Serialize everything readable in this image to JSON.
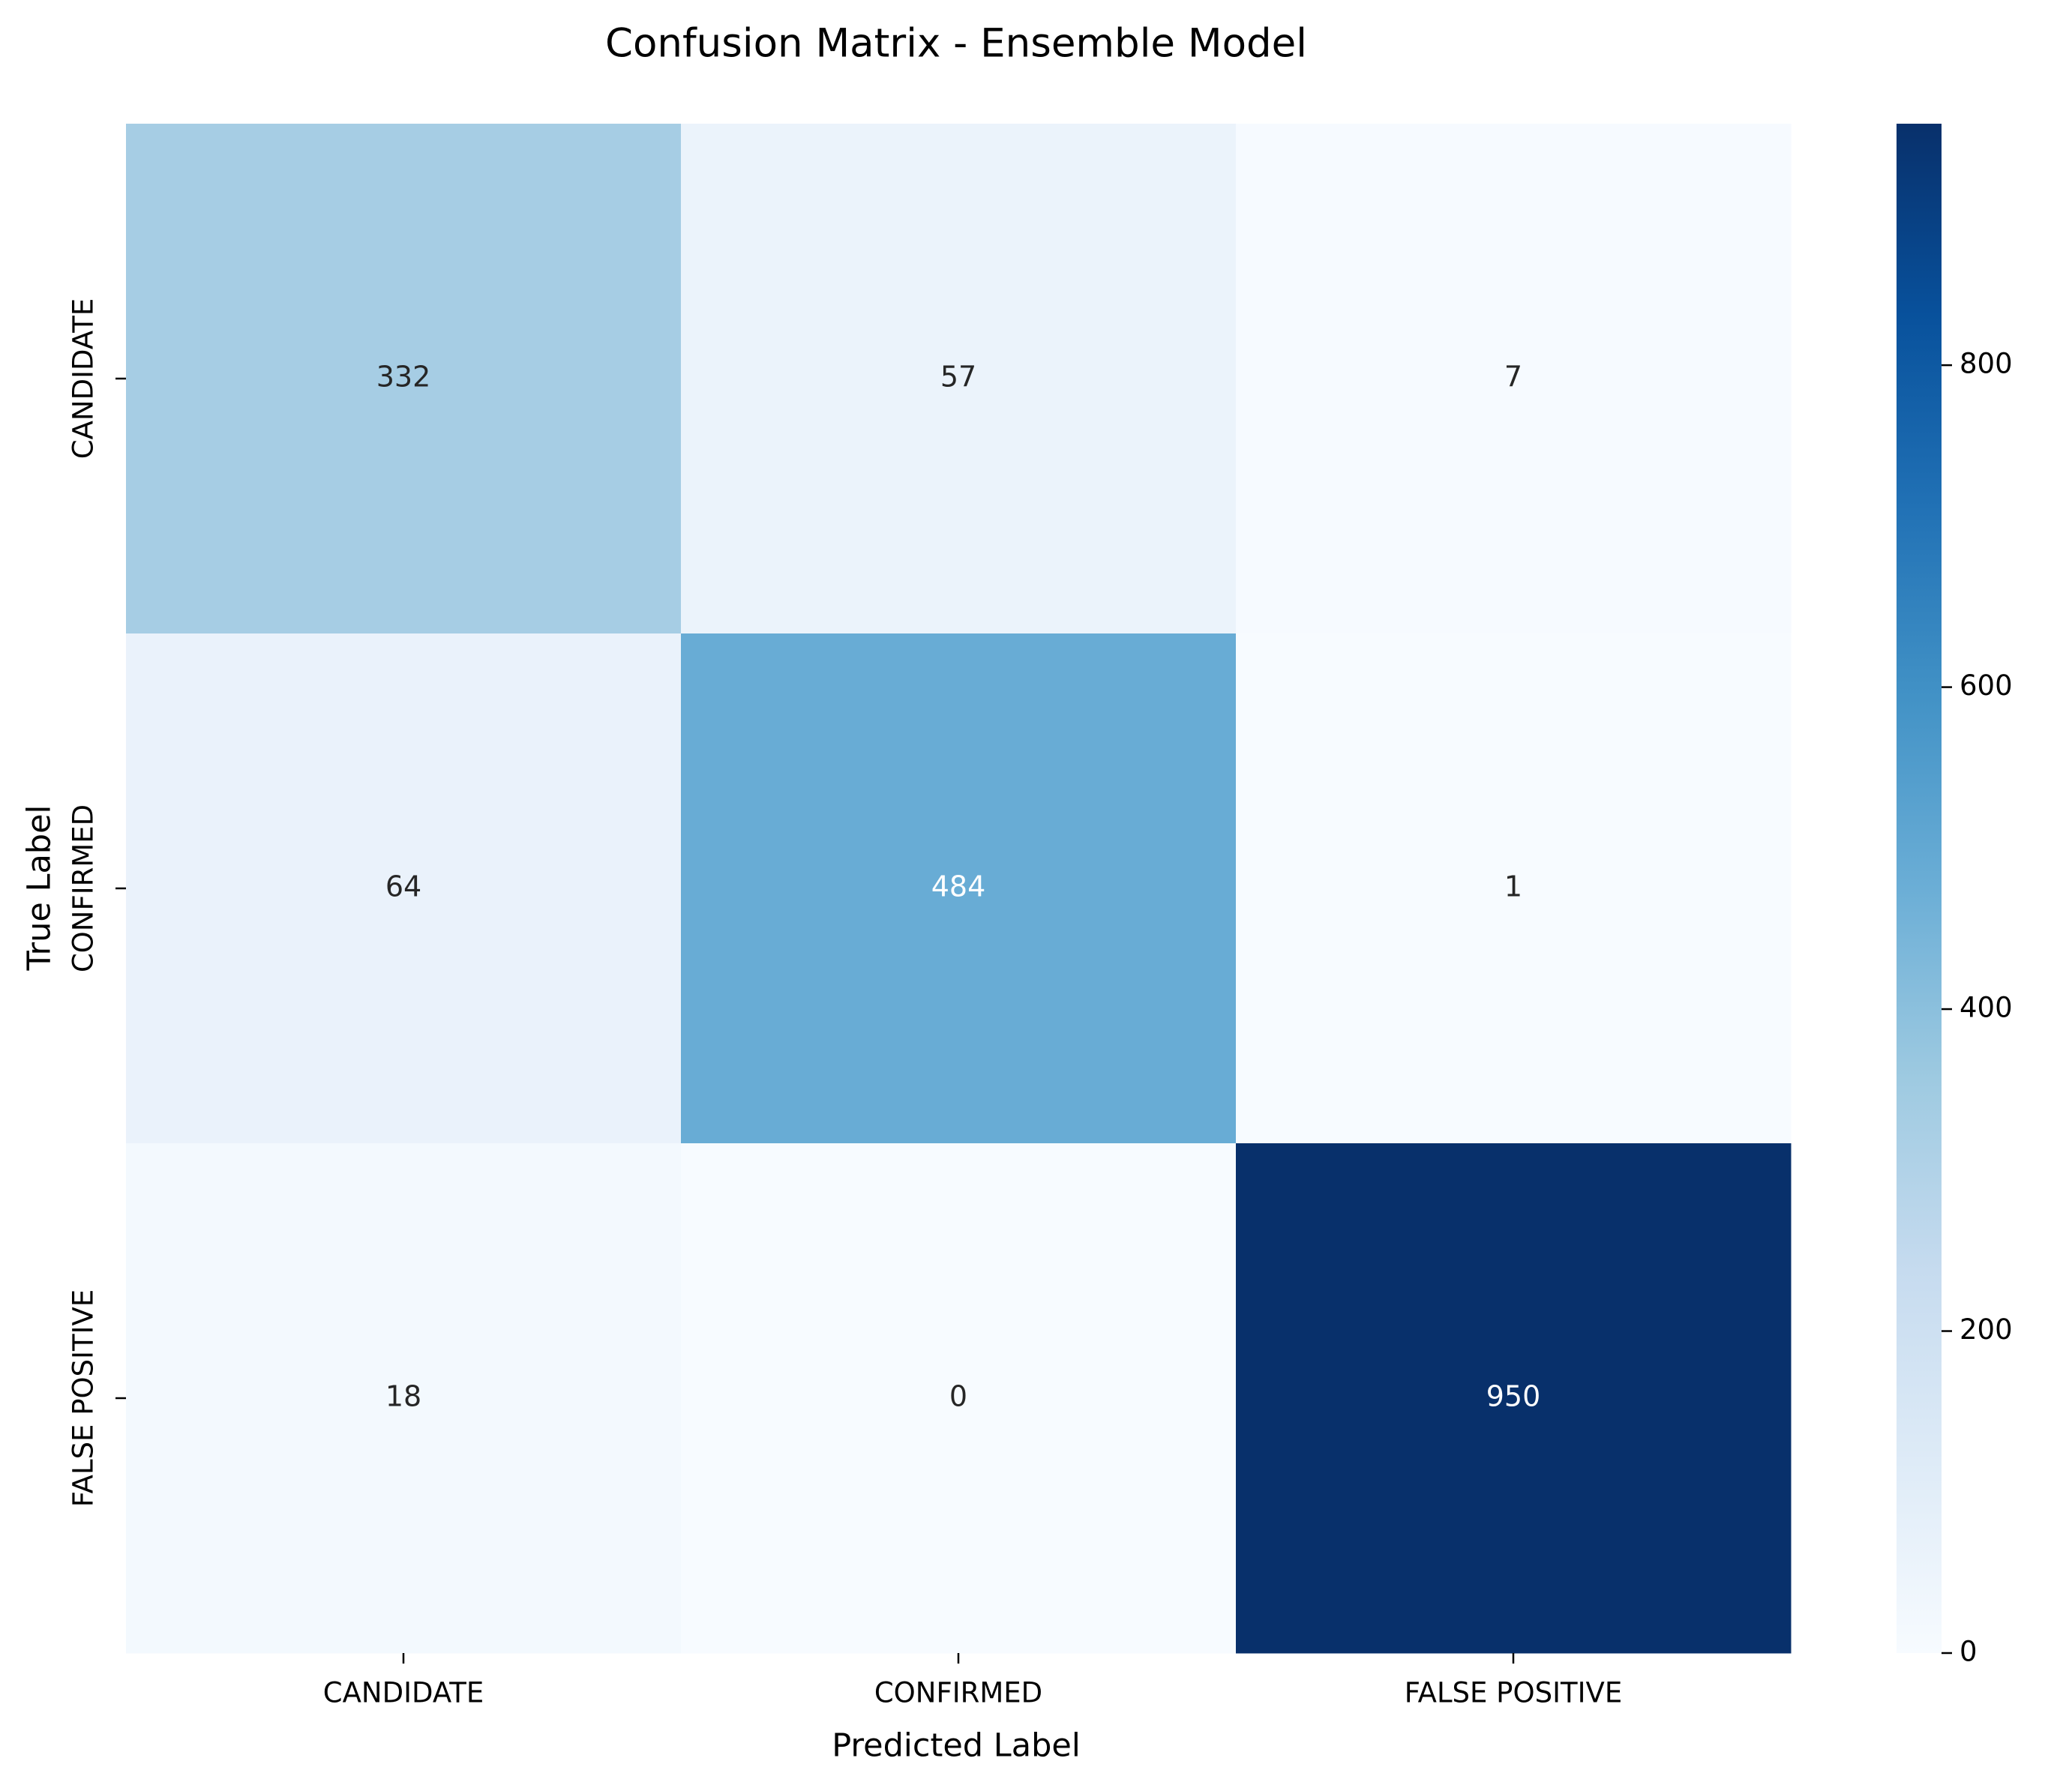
{
  "chart_data": {
    "type": "heatmap",
    "title": "Confusion Matrix - Ensemble Model",
    "xlabel": "Predicted Label",
    "ylabel": "True Label",
    "x_categories": [
      "CANDIDATE",
      "CONFIRMED",
      "FALSE POSITIVE"
    ],
    "y_categories": [
      "CANDIDATE",
      "CONFIRMED",
      "FALSE POSITIVE"
    ],
    "values": [
      [
        332,
        57,
        7
      ],
      [
        64,
        484,
        1
      ],
      [
        18,
        0,
        950
      ]
    ],
    "colormap": "Blues",
    "value_range": [
      0,
      950
    ],
    "colorbar": {
      "ticks": [
        0,
        200,
        400,
        600,
        800
      ],
      "tick_labels": [
        "0",
        "200",
        "400",
        "600",
        "800"
      ]
    },
    "colors": {
      "cmap_stops": [
        "#f7fbff",
        "#deebf7",
        "#c6dbef",
        "#9ecae1",
        "#6baed6",
        "#4292c6",
        "#2171b5",
        "#08519c",
        "#08306b"
      ],
      "annotation_dark": "#262626",
      "annotation_light": "#ffffff"
    }
  }
}
